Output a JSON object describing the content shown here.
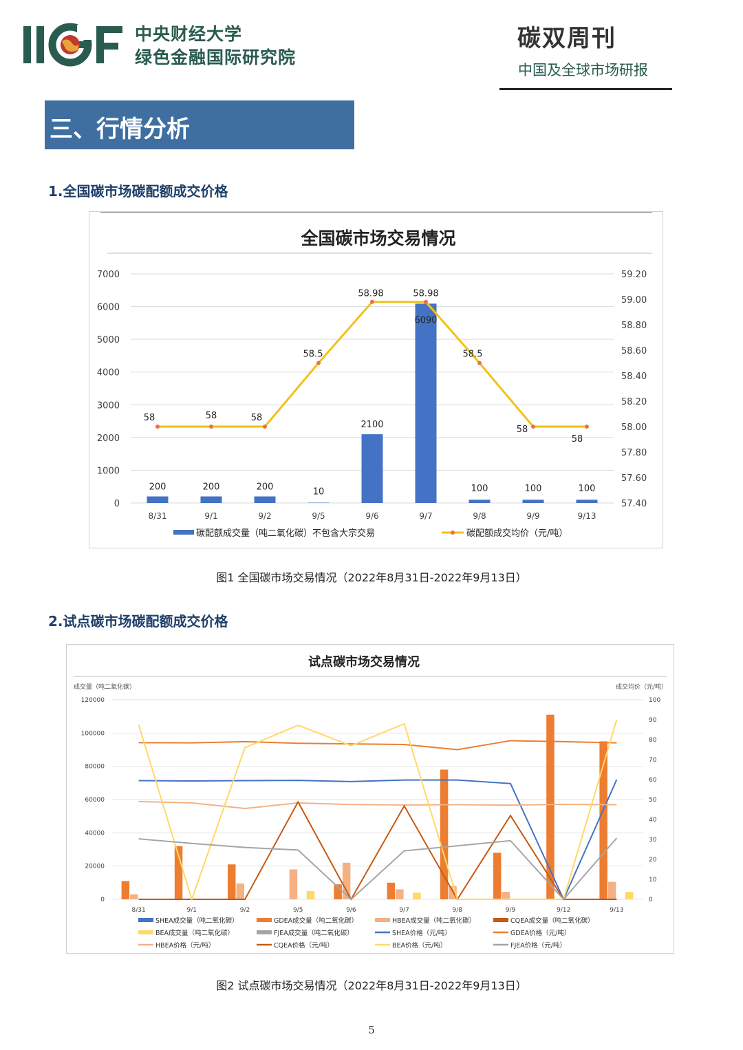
{
  "header": {
    "logo_text": "IIGF",
    "org_line1": "中央财经大学",
    "org_line2": "绿色金融国际研究院",
    "pub_title": "碳双周刊",
    "pub_subtitle": "中国及全球市场研报"
  },
  "section": {
    "title": "三、行情分析",
    "sub1": "1.全国碳市场碳配额成交价格",
    "sub2": "2.试点碳市场碳配额成交价格",
    "caption1": "图1  全国碳市场交易情况（2022年8月31日-2022年9月13日）",
    "caption2": "图2  试点碳市场交易情况（2022年8月31日-2022年9月13日）"
  },
  "page_number": "5",
  "colors": {
    "banner": "#3f6fa0",
    "bar_blue": "#4472c4",
    "line_gold": "#f2c218",
    "marker": "#e8714a",
    "brand_green": "#2a5b4f"
  },
  "chart_data": [
    {
      "type": "bar",
      "title": "全国碳市场交易情况",
      "categories": [
        "8/31",
        "9/1",
        "9/2",
        "9/5",
        "9/6",
        "9/7",
        "9/8",
        "9/9",
        "9/13"
      ],
      "series": [
        {
          "name": "碳配额成交量（吨二氧化碳）不包含大宗交易",
          "axis": "left",
          "type": "bar",
          "values": [
            200,
            200,
            200,
            10,
            2100,
            6090,
            100,
            100,
            100
          ]
        },
        {
          "name": "碳配额成交均价（元/吨）",
          "axis": "right",
          "type": "line",
          "values": [
            58,
            58,
            58,
            58.5,
            58.98,
            58.98,
            58.5,
            58,
            58
          ]
        }
      ],
      "ylim_left": [
        0,
        7000
      ],
      "yticks_left": [
        "0",
        "1000",
        "2000",
        "3000",
        "4000",
        "5000",
        "6000",
        "7000"
      ],
      "ylim_right": [
        57.4,
        59.2
      ],
      "yticks_right": [
        "57.40",
        "57.60",
        "57.80",
        "58.00",
        "58.20",
        "58.40",
        "58.60",
        "58.80",
        "59.00",
        "59.20"
      ],
      "grid": true,
      "legend": "bottom"
    },
    {
      "type": "bar",
      "title": "试点碳市场交易情况",
      "ylabel": "成交量（吨二氧化碳）",
      "ylabel_right": "成交均价（元/吨）",
      "categories": [
        "8/31",
        "9/1",
        "9/2",
        "9/5",
        "9/6",
        "9/7",
        "9/8",
        "9/9",
        "9/12",
        "9/13"
      ],
      "ylim_left": [
        0,
        120000
      ],
      "yticks_left": [
        "0",
        "20000",
        "40000",
        "60000",
        "80000",
        "100000",
        "120000"
      ],
      "ylim_right": [
        0,
        100
      ],
      "yticks_right": [
        "0",
        "10",
        "20",
        "30",
        "40",
        "50",
        "60",
        "70",
        "80",
        "90",
        "100"
      ],
      "bar_series": [
        {
          "name": "SHEA成交量（吨二氧化碳）",
          "color": "#4472c4",
          "values": [
            0,
            0,
            0,
            0,
            0,
            0,
            0,
            0,
            0,
            0
          ]
        },
        {
          "name": "GDEA成交量（吨二氧化碳）",
          "color": "#ed7d31",
          "values": [
            11000,
            32000,
            21000,
            0,
            9000,
            10000,
            78000,
            28000,
            111000,
            95000
          ]
        },
        {
          "name": "HBEA成交量（吨二氧化碳）",
          "color": "#f4b183",
          "values": [
            3000,
            0,
            9500,
            18000,
            22000,
            6000,
            8000,
            4500,
            0,
            10500
          ]
        },
        {
          "name": "CQEA成交量（吨二氧化碳）",
          "color": "#c55a11",
          "values": [
            0,
            0,
            0,
            0,
            0,
            0,
            0,
            0,
            0,
            0
          ]
        },
        {
          "name": "BEA成交量（吨二氧化碳）",
          "color": "#ffd966",
          "values": [
            0,
            0,
            0,
            5000,
            0,
            4000,
            0,
            0,
            0,
            4500
          ]
        },
        {
          "name": "FJEA成交量（吨二氧化碳）",
          "color": "#a5a5a5",
          "values": [
            0,
            0,
            0,
            0,
            0,
            0,
            0,
            0,
            0,
            0
          ]
        }
      ],
      "line_series": [
        {
          "name": "SHEA价格（元/吨）",
          "color": "#4472c4",
          "values": [
            59.5,
            59.3,
            59.5,
            59.6,
            59,
            59.8,
            59.8,
            58,
            0,
            60
          ]
        },
        {
          "name": "GDEA价格（元/吨）",
          "color": "#ed7d31",
          "values": [
            78.5,
            78.4,
            79,
            78.2,
            77.9,
            77.6,
            75,
            79.5,
            79,
            78.4
          ]
        },
        {
          "name": "HBEA价格（元/吨）",
          "color": "#f4b183",
          "values": [
            49,
            48.3,
            45.5,
            48.3,
            47.5,
            47.3,
            47.4,
            47.2,
            47.6,
            47.4
          ]
        },
        {
          "name": "CQEA价格（元/吨）",
          "color": "#c55a11",
          "values": [
            0,
            0,
            0,
            48.8,
            0,
            46.8,
            0,
            42,
            0,
            0
          ]
        },
        {
          "name": "BEA价格（元/吨）",
          "color": "#ffd966",
          "values": [
            87.5,
            0,
            76,
            87.2,
            77,
            88,
            0,
            0,
            0,
            90
          ]
        },
        {
          "name": "FJEA价格（元/吨）",
          "color": "#a5a5a5",
          "values": [
            30.3,
            28,
            26,
            24.7,
            0,
            24.3,
            26.8,
            29.4,
            0,
            30.7
          ]
        }
      ],
      "grid": true,
      "legend": "bottom"
    }
  ]
}
